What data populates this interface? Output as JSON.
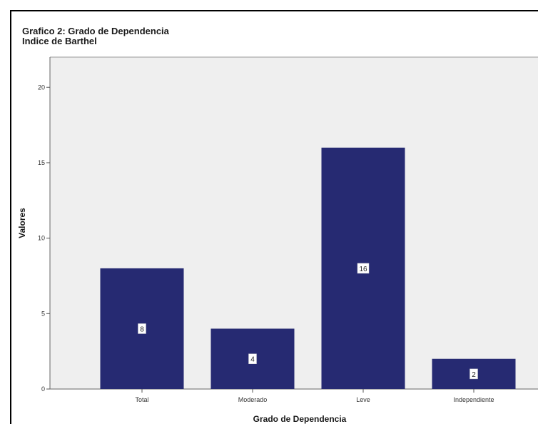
{
  "chart_data": {
    "type": "bar",
    "title": "Grafico 2: Grado de Dependencia",
    "subtitle": "Indice de Barthel",
    "xlabel": "Grado de Dependencia",
    "ylabel": "Valores",
    "categories": [
      "Total",
      "Moderado",
      "Leve",
      "Independiente"
    ],
    "values": [
      8,
      4,
      16,
      2
    ],
    "data_labels": [
      "8",
      "4",
      "16",
      "2"
    ],
    "yticks": [
      0,
      5,
      10,
      15,
      20
    ],
    "ytick_labels": [
      "0",
      "5",
      "10",
      "15",
      "20"
    ],
    "ylim": [
      0,
      22
    ],
    "grid": false,
    "legend": "none",
    "colors": {
      "bar": "#262a72",
      "plot_background": "#efefef",
      "label_box": "#ffffff",
      "text": "#1a1a1a"
    }
  }
}
